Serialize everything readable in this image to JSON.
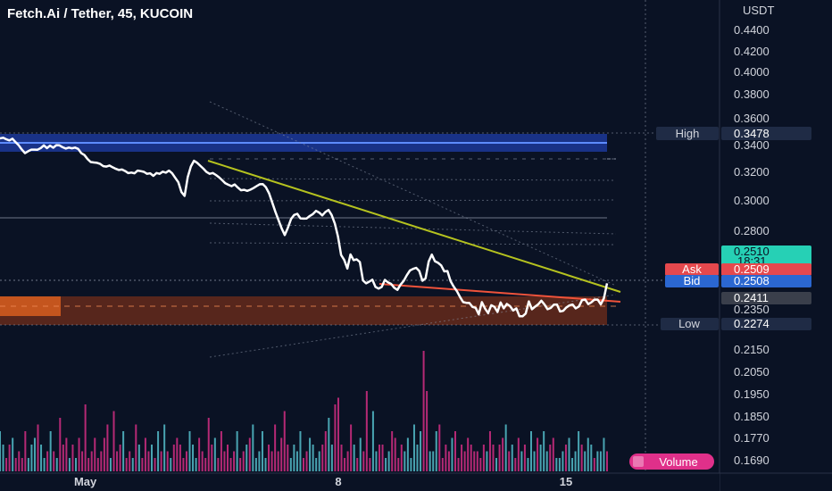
{
  "chart_title": "Fetch.Ai / Tether, 45, KUCOIN",
  "currency_label": "USDT",
  "chart_data": {
    "type": "line",
    "title": "Fetch.Ai / Tether, 45, KUCOIN",
    "ylabel": "USDT",
    "ylim": [
      0.165,
      0.452
    ],
    "y_ticks": [
      "0.4400",
      "0.4200",
      "0.4000",
      "0.3800",
      "0.3600",
      "0.3400",
      "0.3200",
      "0.3000",
      "0.2800",
      "0.2350",
      "0.2150",
      "0.2050",
      "0.1950",
      "0.1850",
      "0.1770",
      "0.1690"
    ],
    "y_tick_values": [
      0.44,
      0.42,
      0.4,
      0.38,
      0.36,
      0.34,
      0.32,
      0.3,
      0.28,
      0.235,
      0.215,
      0.205,
      0.195,
      0.185,
      0.177,
      0.169
    ],
    "x_labels": [
      {
        "label": "May",
        "bar": 27
      },
      {
        "label": "8",
        "bar": 107
      },
      {
        "label": "15",
        "bar": 179
      }
    ],
    "x_range": [
      0,
      192
    ],
    "series": [
      {
        "values": [
          0.3447,
          0.3451,
          0.344,
          0.3431,
          0.3444,
          0.3418,
          0.3395,
          0.3363,
          0.3337,
          0.3351,
          0.3363,
          0.3363,
          0.3362,
          0.3374,
          0.3395,
          0.3374,
          0.3393,
          0.3377,
          0.3396,
          0.3395,
          0.3381,
          0.3371,
          0.3378,
          0.3373,
          0.3378,
          0.3368,
          0.3336,
          0.3322,
          0.3292,
          0.327,
          0.3267,
          0.3264,
          0.3256,
          0.3239,
          0.3236,
          0.3244,
          0.3231,
          0.3219,
          0.3211,
          0.3214,
          0.3203,
          0.3188,
          0.3192,
          0.3187,
          0.3206,
          0.3202,
          0.3197,
          0.3183,
          0.3187,
          0.3169,
          0.3189,
          0.3183,
          0.3198,
          0.3191,
          0.3206,
          0.3187,
          0.3155,
          0.3124,
          0.3055,
          0.3029,
          0.316,
          0.3237,
          0.3279,
          0.3265,
          0.3243,
          0.3221,
          0.3196,
          0.3183,
          0.3189,
          0.3175,
          0.3159,
          0.3138,
          0.3117,
          0.3106,
          0.3097,
          0.3109,
          0.3087,
          0.3068,
          0.3071,
          0.3064,
          0.3072,
          0.3083,
          0.3097,
          0.311,
          0.3111,
          0.3089,
          0.3047,
          0.2984,
          0.2922,
          0.2867,
          0.2813,
          0.2773,
          0.2817,
          0.2874,
          0.2901,
          0.2909,
          0.2879,
          0.2877,
          0.2878,
          0.2895,
          0.2907,
          0.2928,
          0.2917,
          0.2898,
          0.2921,
          0.2934,
          0.2901,
          0.2844,
          0.2764,
          0.2659,
          0.263,
          0.2581,
          0.2662,
          0.2629,
          0.2634,
          0.2618,
          0.2513,
          0.2496,
          0.2506,
          0.2517,
          0.2476,
          0.2466,
          0.2476,
          0.2516,
          0.2502,
          0.2493,
          0.2471,
          0.2459,
          0.2489,
          0.251,
          0.2543,
          0.257,
          0.2579,
          0.2585,
          0.2567,
          0.2511,
          0.2525,
          0.2621,
          0.2661,
          0.2623,
          0.2614,
          0.2599,
          0.2565,
          0.2567,
          0.2509,
          0.2478,
          0.2452,
          0.2418,
          0.2389,
          0.2385,
          0.2384,
          0.2361,
          0.2356,
          0.2323,
          0.2389,
          0.2352,
          0.2329,
          0.2371,
          0.2362,
          0.2335,
          0.2387,
          0.2353,
          0.2378,
          0.2366,
          0.2342,
          0.2353,
          0.2313,
          0.2313,
          0.2327,
          0.2393,
          0.2348,
          0.2363,
          0.2376,
          0.2397,
          0.2375,
          0.2348,
          0.2355,
          0.2374,
          0.2375,
          0.2337,
          0.234,
          0.2358,
          0.237,
          0.2375,
          0.2353,
          0.2364,
          0.24,
          0.2403,
          0.2377,
          0.2388,
          0.2403,
          0.2403,
          0.2376,
          0.2411,
          0.2496
        ]
      }
    ],
    "volume": [
      6,
      4,
      2,
      4,
      5,
      2,
      3,
      2,
      6,
      2,
      4,
      5,
      7,
      4,
      2,
      3,
      6,
      3,
      2,
      8,
      4,
      5,
      2,
      4,
      2,
      5,
      3,
      10,
      2,
      3,
      5,
      2,
      3,
      5,
      7,
      2,
      9,
      3,
      4,
      6,
      2,
      3,
      2,
      7,
      4,
      2,
      5,
      3,
      4,
      2,
      6,
      3,
      7,
      3,
      2,
      4,
      5,
      4,
      2,
      3,
      6,
      4,
      2,
      5,
      3,
      2,
      8,
      4,
      5,
      2,
      6,
      3,
      4,
      2,
      3,
      6,
      2,
      3,
      4,
      5,
      7,
      2,
      3,
      6,
      2,
      4,
      3,
      7,
      3,
      5,
      9,
      4,
      2,
      4,
      3,
      6,
      2,
      3,
      5,
      4,
      2,
      3,
      4,
      6,
      8,
      4,
      10,
      11,
      4,
      2,
      3,
      7,
      4,
      2,
      5,
      3,
      12,
      2,
      9,
      3,
      4,
      4,
      2,
      3,
      6,
      5,
      2,
      4,
      3,
      5,
      2,
      7,
      4,
      6,
      18,
      12,
      3,
      3,
      6,
      7,
      2,
      4,
      3,
      5,
      6,
      2,
      4,
      3,
      5,
      4,
      3,
      3,
      2,
      4,
      3,
      6,
      4,
      2,
      4,
      5,
      7,
      3,
      4,
      2,
      5,
      3,
      4,
      2,
      6,
      3,
      5,
      4,
      6,
      3,
      4,
      5,
      2,
      2,
      3,
      4,
      5,
      2,
      3,
      6,
      4,
      3,
      5,
      4,
      2,
      3,
      3,
      5,
      3
    ],
    "high_label": "High",
    "high_value": "0.3478",
    "low_label": "Low",
    "low_value": "0.2274",
    "last_price": "0.2510",
    "countdown": "18:31",
    "ask_label": "Ask",
    "ask_value": "0.2509",
    "bid_label": "Bid",
    "bid_value": "0.2508",
    "marker_value": "0.2411",
    "volume_label": "Volume",
    "colors": {
      "background": "#0a1224",
      "price_line": "#ffffff",
      "trend_upper": "#b5c21f",
      "trend_lower": "#f0533b",
      "high_zone": "#1f3da8",
      "low_zone": "#8a3417",
      "volume_up": "#59c9d6",
      "volume_down": "#e0308a",
      "last_price_bg": "#26d0b5",
      "ask_bg": "#e5484d",
      "bid_bg": "#2b67d1",
      "label_box": "#1f2b45",
      "marker_box": "#3a3f4b"
    }
  }
}
